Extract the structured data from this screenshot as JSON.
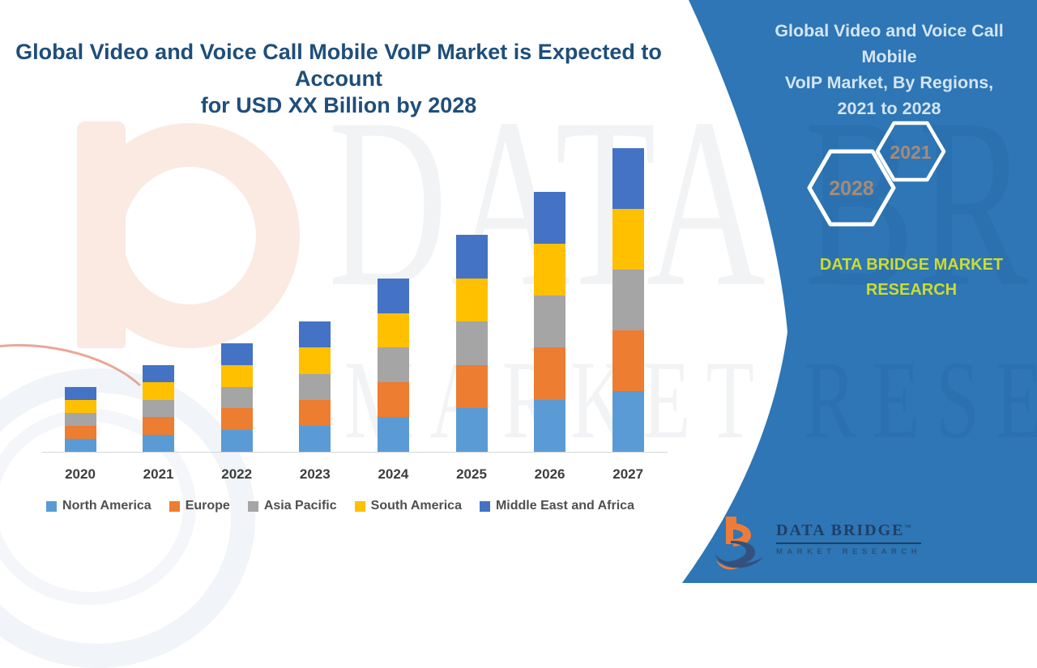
{
  "main_title": {
    "line1": "Global Video and Voice Call Mobile VoIP Market is Expected to Account",
    "line2": "for USD XX Billion by 2028"
  },
  "chart_data": {
    "type": "bar",
    "stacked": true,
    "title": "Global Video and Voice Call Mobile VoIP Market is Expected to Account for USD XX Billion by 2028",
    "categories": [
      "2020",
      "2021",
      "2022",
      "2023",
      "2024",
      "2025",
      "2026",
      "2027"
    ],
    "series": [
      {
        "name": "North America",
        "color": "#5B9BD5",
        "values": [
          3,
          4,
          5,
          6,
          8,
          10,
          12,
          14
        ]
      },
      {
        "name": "Europe",
        "color": "#ED7D31",
        "values": [
          3,
          4,
          5,
          6,
          8,
          10,
          12,
          14
        ]
      },
      {
        "name": "Asia Pacific",
        "color": "#A5A5A5",
        "values": [
          3,
          4,
          5,
          6,
          8,
          10,
          12,
          14
        ]
      },
      {
        "name": "South America",
        "color": "#FFC000",
        "values": [
          3,
          4,
          5,
          6,
          8,
          10,
          12,
          14
        ]
      },
      {
        "name": "Middle East and Africa",
        "color": "#4472C4",
        "values": [
          3,
          4,
          5,
          6,
          8,
          10,
          12,
          14
        ]
      }
    ],
    "stack_totals": [
      15,
      20,
      25,
      30,
      40,
      50,
      60,
      70
    ],
    "value_scale": "relative units - no y-axis tick labels are shown in the figure",
    "ylim": [
      0,
      70
    ],
    "grid": false,
    "y_axis_visible": false,
    "legend_position": "bottom"
  },
  "panel": {
    "title_lines": [
      "Global Video and Voice Call Mobile",
      "VoIP Market, By Regions,",
      "2021 to 2028"
    ],
    "hexagons": [
      {
        "label": "2028"
      },
      {
        "label": "2021"
      }
    ],
    "brand_lines": [
      "DATA BRIDGE MARKET",
      "RESEARCH"
    ],
    "colors": {
      "panel_blue": "#2E76B5",
      "brand_yellow": "#CDDC2F",
      "hex_label": "#A68B78",
      "panel_title_text": "#D3E5F5",
      "main_title_text": "#1F4E79"
    }
  },
  "logo": {
    "name": "DATA BRIDGE",
    "tm": "™",
    "subtitle": "MARKET RESEARCH"
  },
  "watermark": {
    "line1": "DATA BRIDGE",
    "line2": "MARKET RESEARCH"
  }
}
